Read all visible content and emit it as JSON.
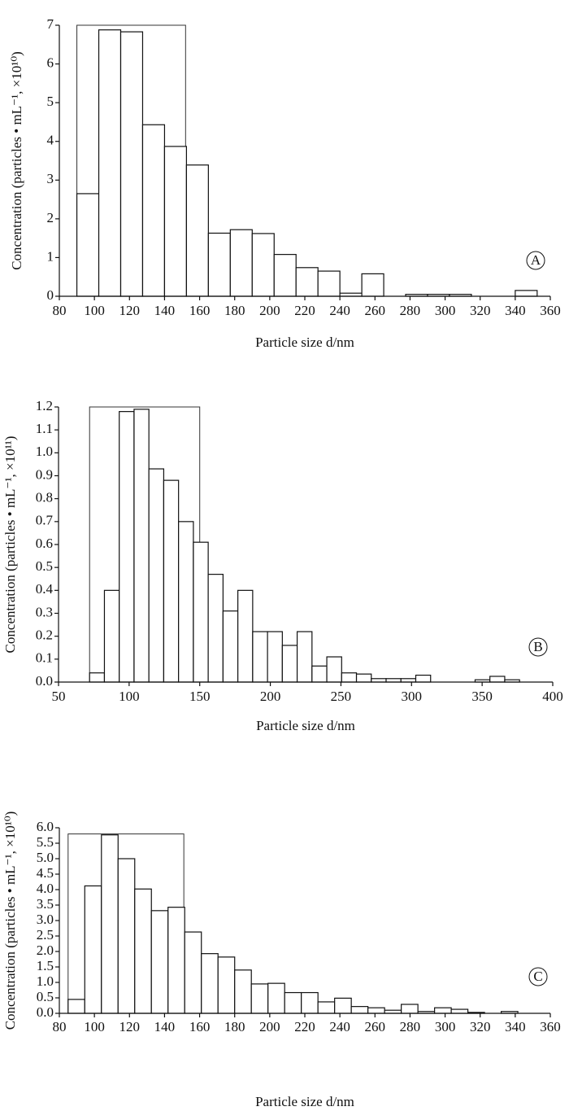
{
  "chart_data": [
    {
      "type": "histogram",
      "panel": "A",
      "x_label": "Particle size d/nm",
      "y_label": "Concentration (particles • mL⁻¹, ×10¹⁰)",
      "bins": [
        90,
        102.5,
        115,
        127.5,
        140,
        152.5,
        165,
        177.5,
        190,
        202.5,
        215,
        227.5,
        240,
        252.5,
        265,
        277.5,
        290,
        302.5,
        315,
        327.5,
        340,
        352.5
      ],
      "values": [
        2.65,
        6.88,
        6.83,
        4.43,
        3.87,
        3.39,
        1.63,
        1.72,
        1.62,
        1.08,
        0.74,
        0.65,
        0.08,
        0.58,
        0,
        0.05,
        0.05,
        0.05,
        0,
        0,
        0.15
      ],
      "highlight": {
        "x": [
          90,
          152
        ],
        "y": 7
      },
      "xlim": [
        80,
        360
      ],
      "xticks": [
        80,
        100,
        120,
        140,
        160,
        180,
        200,
        220,
        240,
        260,
        280,
        300,
        320,
        340,
        360
      ],
      "ylim": [
        0,
        7
      ],
      "yticks": [
        0,
        1,
        2,
        3,
        4,
        5,
        6,
        7
      ],
      "color": "#ffffff"
    },
    {
      "type": "histogram",
      "panel": "B",
      "x_label": "Particle size d/nm",
      "y_label": "Concentration (particles • mL⁻¹, ×10¹¹)",
      "bins": [
        72,
        82.5,
        93,
        103.5,
        114,
        124.5,
        135,
        145.5,
        156,
        166.5,
        177,
        187.5,
        198,
        208.5,
        219,
        229.5,
        240,
        250.5,
        261,
        271.5,
        282,
        292.5,
        303,
        313.5,
        324,
        334.5,
        345,
        355.5,
        366,
        376.5
      ],
      "values": [
        0.04,
        0.4,
        1.18,
        1.19,
        0.93,
        0.88,
        0.7,
        0.61,
        0.47,
        0.31,
        0.4,
        0.22,
        0.22,
        0.16,
        0.22,
        0.07,
        0.11,
        0.04,
        0.035,
        0.015,
        0.015,
        0.015,
        0.03,
        0,
        0,
        0,
        0.01,
        0.025,
        0.01
      ],
      "highlight": {
        "x": [
          72,
          150
        ],
        "y": 1.2
      },
      "xlim": [
        50,
        400
      ],
      "xticks": [
        50,
        100,
        150,
        200,
        250,
        300,
        350,
        400
      ],
      "ylim": [
        0,
        1.2
      ],
      "yticks": [
        {
          "value": 0,
          "label": "0.0"
        },
        0.1,
        0.2,
        0.3,
        0.4,
        0.5,
        0.6,
        0.7,
        0.8,
        0.9,
        {
          "value": 1,
          "label": "1.0"
        },
        1.1,
        1.2
      ],
      "color": "#ffffff"
    },
    {
      "type": "histogram",
      "panel": "C",
      "x_label": "Particle size d/nm",
      "y_label": "Concentration (particles • mL⁻¹, ×10¹⁰)",
      "bins": [
        85,
        94.5,
        104,
        113.5,
        123,
        132.5,
        142,
        151.5,
        161,
        170.5,
        180,
        189.5,
        199,
        208.5,
        218,
        227.5,
        237,
        246.5,
        256,
        265.5,
        275,
        284.5,
        294,
        303.5,
        313,
        322.5,
        332,
        341.5
      ],
      "values": [
        0.45,
        4.12,
        5.77,
        5.0,
        4.02,
        3.32,
        3.43,
        2.63,
        1.93,
        1.82,
        1.4,
        0.95,
        0.97,
        0.67,
        0.67,
        0.37,
        0.49,
        0.22,
        0.18,
        0.1,
        0.29,
        0.06,
        0.18,
        0.13,
        0.03,
        0,
        0.06
      ],
      "highlight": {
        "x": [
          85,
          151
        ],
        "y": 5.8
      },
      "xlim": [
        80,
        360
      ],
      "xticks": [
        80,
        100,
        120,
        140,
        160,
        180,
        200,
        220,
        240,
        260,
        280,
        300,
        320,
        340,
        360
      ],
      "ylim": [
        0,
        6
      ],
      "yticks": [
        {
          "value": 0,
          "label": "0.0"
        },
        0.5,
        {
          "value": 1,
          "label": "1.0"
        },
        1.5,
        {
          "value": 2,
          "label": "2.0"
        },
        2.5,
        {
          "value": 3,
          "label": "3.0"
        },
        3.5,
        {
          "value": 4,
          "label": "4.0"
        },
        4.5,
        {
          "value": 5,
          "label": "5.0"
        },
        5.5,
        {
          "value": 6,
          "label": "6.0"
        }
      ],
      "color": "#ffffff"
    }
  ]
}
